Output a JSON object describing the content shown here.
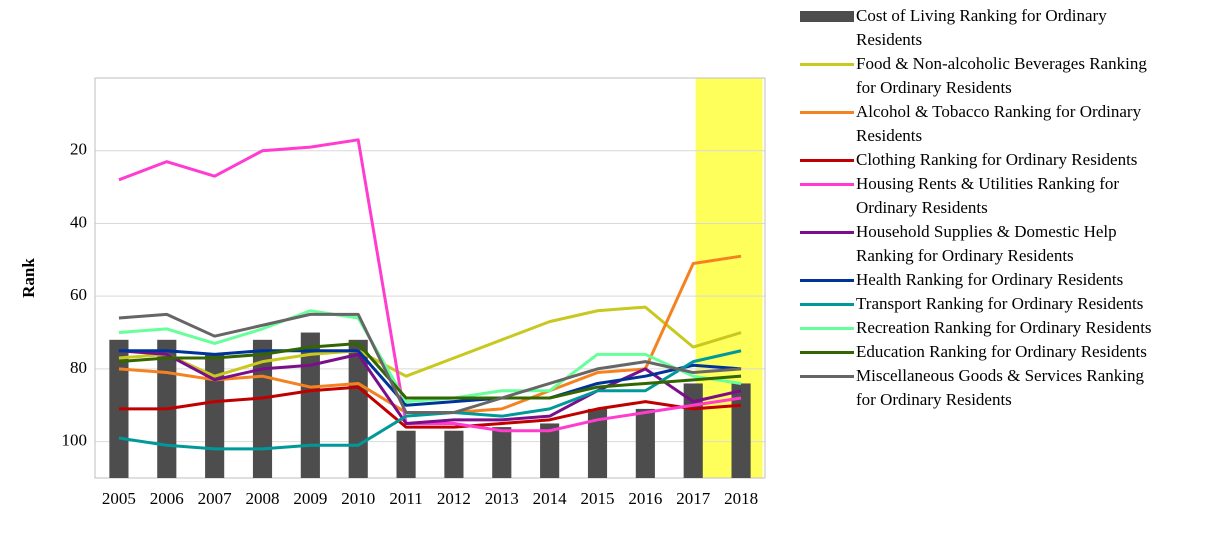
{
  "chart_data": {
    "type": "bar",
    "y_label": "Rank",
    "y_inverted": true,
    "categories": [
      "2005",
      "2006",
      "2007",
      "2008",
      "2009",
      "2010",
      "2011",
      "2012",
      "2013",
      "2014",
      "2015",
      "2016",
      "2017",
      "2018"
    ],
    "ylim": [
      0,
      110
    ],
    "yticks": [
      20,
      40,
      60,
      80,
      100
    ],
    "grid": true,
    "highlight": {
      "category": "2018",
      "color": "#ffff33"
    },
    "series": [
      {
        "name": "Cost of Living Ranking for Ordinary Residents",
        "type": "bar",
        "color": "#4d4d4d",
        "values": [
          72,
          72,
          76,
          72,
          70,
          72,
          97,
          97,
          96,
          95,
          91,
          91,
          84,
          84
        ]
      },
      {
        "name": "Food & Non-alcoholic Beverages Ranking for Ordinary Residents",
        "type": "line",
        "color": "#c8c81e",
        "values": [
          77,
          76,
          82,
          78,
          76,
          75,
          82,
          77,
          72,
          67,
          64,
          63,
          74,
          70
        ]
      },
      {
        "name": "Alcohol & Tobacco Ranking for Ordinary Residents",
        "type": "line",
        "color": "#f58220",
        "values": [
          80,
          81,
          83,
          82,
          85,
          84,
          92,
          92,
          91,
          86,
          81,
          80,
          51,
          49
        ]
      },
      {
        "name": "Clothing Ranking for Ordinary Residents",
        "type": "line",
        "color": "#c00000",
        "values": [
          91,
          91,
          89,
          88,
          86,
          85,
          96,
          96,
          95,
          94,
          91,
          89,
          91,
          90
        ]
      },
      {
        "name": "Housing Rents & Utilities Ranking for Ordinary Residents",
        "type": "line",
        "color": "#ff3ccf",
        "values": [
          28,
          23,
          27,
          20,
          19,
          17,
          95,
          95,
          97,
          97,
          94,
          92,
          90,
          88
        ]
      },
      {
        "name": "Household Supplies & Domestic Help Ranking for Ordinary Residents",
        "type": "line",
        "color": "#7b0e8a",
        "values": [
          75,
          76,
          83,
          80,
          79,
          76,
          95,
          94,
          94,
          93,
          86,
          80,
          89,
          86
        ]
      },
      {
        "name": "Health Ranking for Ordinary Residents",
        "type": "line",
        "color": "#003399",
        "values": [
          75,
          75,
          76,
          75,
          75,
          75,
          90,
          89,
          88,
          88,
          84,
          82,
          79,
          80
        ]
      },
      {
        "name": "Transport Ranking for Ordinary Residents",
        "type": "line",
        "color": "#009999",
        "values": [
          99,
          101,
          102,
          102,
          101,
          101,
          93,
          92,
          93,
          91,
          86,
          86,
          78,
          75
        ]
      },
      {
        "name": "Recreation Ranking for Ordinary Residents",
        "type": "line",
        "color": "#66ff99",
        "values": [
          70,
          69,
          73,
          69,
          64,
          66,
          89,
          88,
          86,
          86,
          76,
          76,
          82,
          84
        ]
      },
      {
        "name": "Education Ranking for Ordinary Residents",
        "type": "line",
        "color": "#336600",
        "values": [
          78,
          77,
          77,
          76,
          74,
          73,
          88,
          88,
          88,
          88,
          85,
          84,
          83,
          82
        ]
      },
      {
        "name": "Miscellaneous Goods & Services Ranking for Ordinary Residents",
        "type": "line",
        "color": "#666666",
        "values": [
          66,
          65,
          71,
          68,
          65,
          65,
          92,
          92,
          88,
          84,
          80,
          78,
          81,
          80
        ]
      }
    ]
  }
}
